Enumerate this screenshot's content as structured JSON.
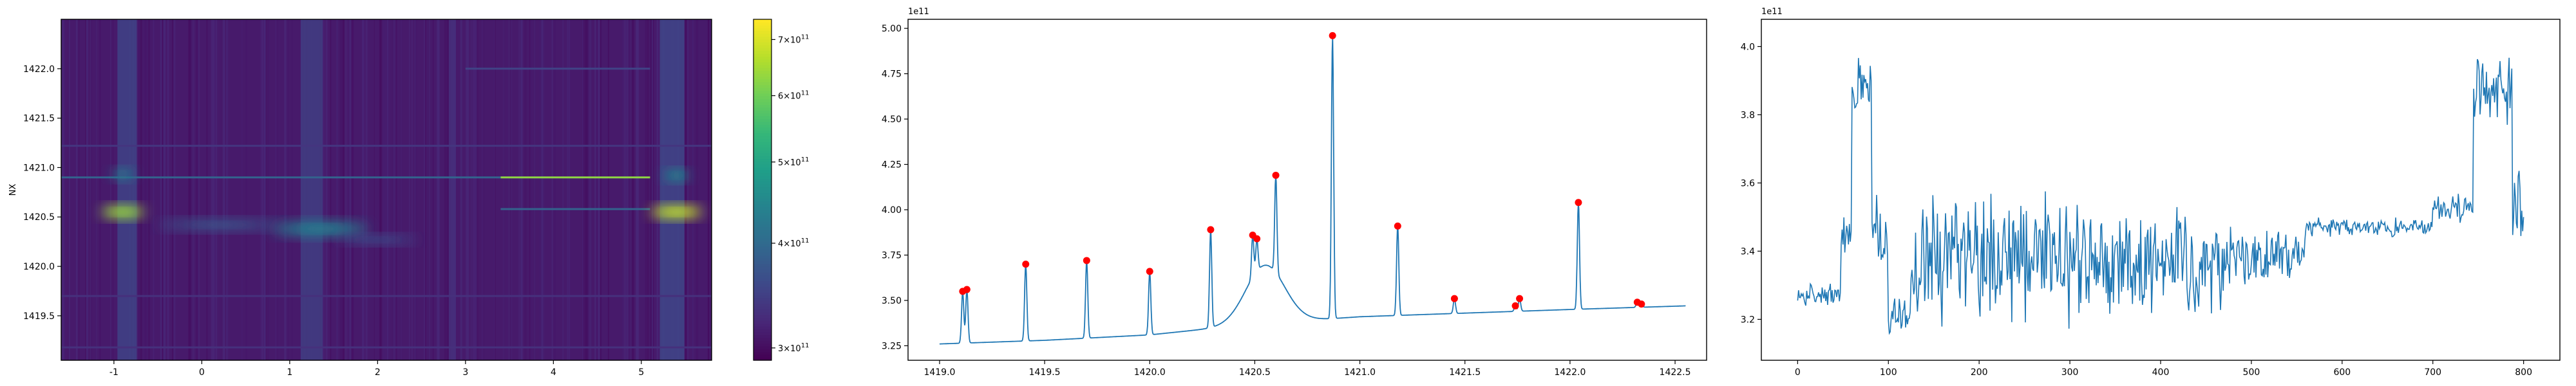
{
  "colors": {
    "line": "#1f77b4",
    "marker": "#ff0000",
    "axes": "#000000",
    "viridis": [
      "#440154",
      "#482878",
      "#3e4989",
      "#31688e",
      "#26828e",
      "#1f9e89",
      "#35b779",
      "#6ece58",
      "#b5de2b",
      "#fde725"
    ]
  },
  "chart_data": [
    {
      "type": "heatmap",
      "ylabel": "NX",
      "xlabel": "",
      "xlim": [
        -1.6,
        5.8
      ],
      "ylim": [
        1419.05,
        1422.5
      ],
      "x_ticks": [
        "-1",
        "0",
        "1",
        "2",
        "3",
        "4",
        "5"
      ],
      "y_ticks": [
        "1419.5",
        "1420.0",
        "1420.5",
        "1421.0",
        "1421.5",
        "1422.0"
      ],
      "colorbar": {
        "scale": "log",
        "range": [
          290000000000.0,
          740000000000.0
        ],
        "ticks": [
          {
            "value": 300000000000.0,
            "base": "3",
            "exp": "11"
          },
          {
            "value": 400000000000.0,
            "base": "4",
            "exp": "11"
          },
          {
            "value": 500000000000.0,
            "base": "5",
            "exp": "11"
          },
          {
            "value": 600000000000.0,
            "base": "6",
            "exp": "11"
          },
          {
            "value": 700000000000.0,
            "base": "7",
            "exp": "11"
          }
        ],
        "times_sign": "×10"
      },
      "background_value": 310000000000.0,
      "vertical_bands": [
        {
          "x": -0.85,
          "width": 0.22,
          "value": 350000000000.0
        },
        {
          "x": 1.25,
          "width": 0.25,
          "value": 345000000000.0
        },
        {
          "x": 2.85,
          "width": 0.08,
          "value": 330000000000.0
        },
        {
          "x": 5.35,
          "width": 0.28,
          "value": 355000000000.0
        }
      ],
      "horizontal_lines": [
        {
          "y": 1420.9,
          "x0": -1.6,
          "x1": 3.4,
          "value": 390000000000.0
        },
        {
          "y": 1420.9,
          "x0": 3.4,
          "x1": 5.1,
          "value": 630000000000.0
        },
        {
          "y": 1420.58,
          "x0": 3.4,
          "x1": 5.1,
          "value": 390000000000.0
        },
        {
          "y": 1422.0,
          "x0": 3.0,
          "x1": 5.1,
          "value": 350000000000.0
        },
        {
          "y": 1421.22,
          "x0": -1.6,
          "x1": 5.8,
          "value": 335000000000.0
        },
        {
          "y": 1419.7,
          "x0": -1.6,
          "x1": 5.8,
          "value": 330000000000.0
        },
        {
          "y": 1419.18,
          "x0": -1.6,
          "x1": 5.8,
          "value": 330000000000.0
        }
      ],
      "blobs": [
        {
          "x": -0.9,
          "y": 1420.55,
          "rx": 0.25,
          "ry": 0.06,
          "value": 640000000000.0
        },
        {
          "x": -0.9,
          "y": 1420.93,
          "rx": 0.12,
          "ry": 0.05,
          "value": 430000000000.0
        },
        {
          "x": 0.2,
          "y": 1420.42,
          "rx": 0.7,
          "ry": 0.05,
          "value": 370000000000.0
        },
        {
          "x": 1.35,
          "y": 1420.38,
          "rx": 0.55,
          "ry": 0.07,
          "value": 430000000000.0
        },
        {
          "x": 2.0,
          "y": 1420.27,
          "rx": 0.45,
          "ry": 0.04,
          "value": 360000000000.0
        },
        {
          "x": 5.4,
          "y": 1420.55,
          "rx": 0.3,
          "ry": 0.06,
          "value": 680000000000.0
        },
        {
          "x": 5.4,
          "y": 1420.92,
          "rx": 0.14,
          "ry": 0.05,
          "value": 450000000000.0
        }
      ]
    },
    {
      "type": "line",
      "offset_text": "1e11",
      "xlim": [
        1418.85,
        1422.65
      ],
      "ylim": [
        3.17,
        5.05
      ],
      "x_ticks": [
        "1419.0",
        "1419.5",
        "1420.0",
        "1420.5",
        "1421.0",
        "1421.5",
        "1422.0",
        "1422.5"
      ],
      "y_ticks": [
        "3.25",
        "3.50",
        "3.75",
        "4.00",
        "4.25",
        "4.50",
        "4.75",
        "5.00"
      ],
      "baseline": [
        [
          1419.0,
          3.26
        ],
        [
          1419.5,
          3.28
        ],
        [
          1420.0,
          3.31
        ],
        [
          1420.5,
          3.37
        ],
        [
          1421.0,
          3.41
        ],
        [
          1421.5,
          3.43
        ],
        [
          1422.0,
          3.45
        ],
        [
          1422.55,
          3.47
        ]
      ],
      "bump": {
        "x": 1420.55,
        "height": 0.32,
        "width": 0.13
      },
      "peaks": [
        {
          "x": 1419.11,
          "y": 3.55
        },
        {
          "x": 1419.13,
          "y": 3.56
        },
        {
          "x": 1419.41,
          "y": 3.7
        },
        {
          "x": 1419.7,
          "y": 3.72
        },
        {
          "x": 1420.0,
          "y": 3.66
        },
        {
          "x": 1420.29,
          "y": 3.89
        },
        {
          "x": 1420.49,
          "y": 3.86
        },
        {
          "x": 1420.51,
          "y": 3.84
        },
        {
          "x": 1420.6,
          "y": 4.19
        },
        {
          "x": 1420.87,
          "y": 4.96
        },
        {
          "x": 1421.18,
          "y": 3.91
        },
        {
          "x": 1421.45,
          "y": 3.51
        },
        {
          "x": 1421.74,
          "y": 3.47
        },
        {
          "x": 1421.76,
          "y": 3.51
        },
        {
          "x": 1422.04,
          "y": 4.04
        },
        {
          "x": 1422.32,
          "y": 3.49
        },
        {
          "x": 1422.34,
          "y": 3.48
        }
      ]
    },
    {
      "type": "line",
      "offset_text": "1e11",
      "xlim": [
        -40,
        840
      ],
      "ylim": [
        3.08,
        4.08
      ],
      "x_ticks": [
        "0",
        "100",
        "200",
        "300",
        "400",
        "500",
        "600",
        "700",
        "800"
      ],
      "y_ticks": [
        "3.2",
        "3.4",
        "3.6",
        "3.8",
        "4.0"
      ],
      "n_points": 801,
      "segments": [
        {
          "x0": 0,
          "x1": 48,
          "base": 3.27,
          "amp": 0.04
        },
        {
          "x0": 48,
          "x1": 60,
          "base": 3.45,
          "amp": 0.08
        },
        {
          "x0": 60,
          "x1": 82,
          "base": 3.88,
          "amp": 0.09
        },
        {
          "x0": 82,
          "x1": 100,
          "base": 3.45,
          "amp": 0.15
        },
        {
          "x0": 100,
          "x1": 125,
          "base": 3.22,
          "amp": 0.07
        },
        {
          "x0": 125,
          "x1": 330,
          "base": 3.38,
          "amp": 0.22
        },
        {
          "x0": 330,
          "x1": 470,
          "base": 3.36,
          "amp": 0.17
        },
        {
          "x0": 470,
          "x1": 560,
          "base": 3.38,
          "amp": 0.1
        },
        {
          "x0": 560,
          "x1": 700,
          "base": 3.47,
          "amp": 0.03
        },
        {
          "x0": 700,
          "x1": 745,
          "base": 3.53,
          "amp": 0.05
        },
        {
          "x0": 745,
          "x1": 788,
          "base": 3.87,
          "amp": 0.12
        },
        {
          "x0": 788,
          "x1": 801,
          "base": 3.52,
          "amp": 0.15
        }
      ]
    }
  ]
}
